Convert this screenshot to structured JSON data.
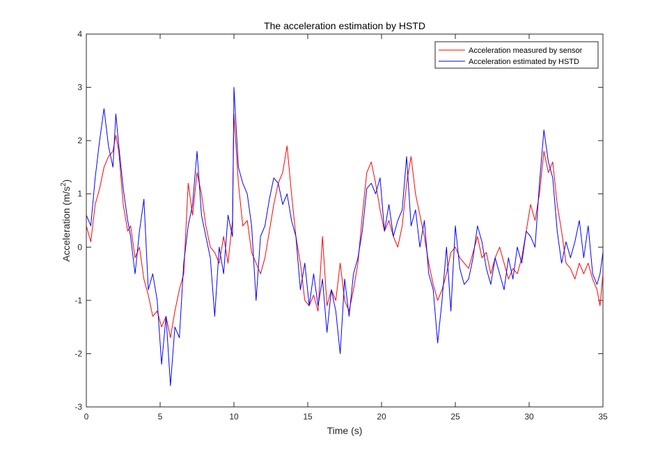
{
  "chart_data": {
    "type": "line",
    "title": "The acceleration estimation by HSTD",
    "xlabel": "Time (s)",
    "ylabel_base": "Acceleration (m/s",
    "ylabel_sup": "2",
    "ylabel_end": ")",
    "xlim": [
      0,
      35
    ],
    "ylim": [
      -3,
      4
    ],
    "xticks": [
      "0",
      "5",
      "10",
      "15",
      "20",
      "25",
      "30",
      "35"
    ],
    "yticks": [
      "-3",
      "-2",
      "-1",
      "0",
      "1",
      "2",
      "3",
      "4"
    ],
    "legend_position": "top-right",
    "series": [
      {
        "name": "Acceleration measured by sensor",
        "color": "#ff0000",
        "points": [
          [
            0,
            0.4
          ],
          [
            0.3,
            0.1
          ],
          [
            0.6,
            0.8
          ],
          [
            0.9,
            1.1
          ],
          [
            1.2,
            1.5
          ],
          [
            1.5,
            1.7
          ],
          [
            1.8,
            1.8
          ],
          [
            2.0,
            2.1
          ],
          [
            2.2,
            1.8
          ],
          [
            2.5,
            0.8
          ],
          [
            2.8,
            0.3
          ],
          [
            3.0,
            0.4
          ],
          [
            3.3,
            -0.2
          ],
          [
            3.6,
            0.0
          ],
          [
            3.9,
            -0.6
          ],
          [
            4.2,
            -0.9
          ],
          [
            4.5,
            -1.3
          ],
          [
            4.8,
            -1.2
          ],
          [
            5.1,
            -1.5
          ],
          [
            5.4,
            -1.3
          ],
          [
            5.7,
            -1.7
          ],
          [
            6.0,
            -1.2
          ],
          [
            6.3,
            -0.8
          ],
          [
            6.6,
            -0.5
          ],
          [
            6.9,
            1.2
          ],
          [
            7.2,
            0.6
          ],
          [
            7.5,
            1.4
          ],
          [
            7.8,
            1.0
          ],
          [
            8.1,
            0.4
          ],
          [
            8.4,
            0.0
          ],
          [
            8.7,
            -0.1
          ],
          [
            9.0,
            -0.3
          ],
          [
            9.3,
            0.2
          ],
          [
            9.6,
            -0.3
          ],
          [
            9.9,
            0.5
          ],
          [
            10.0,
            2.5
          ],
          [
            10.3,
            1.2
          ],
          [
            10.6,
            0.4
          ],
          [
            10.9,
            0.5
          ],
          [
            11.2,
            -0.1
          ],
          [
            11.5,
            -0.3
          ],
          [
            11.8,
            -0.5
          ],
          [
            12.1,
            -0.2
          ],
          [
            12.4,
            0.3
          ],
          [
            12.7,
            0.8
          ],
          [
            13.0,
            1.2
          ],
          [
            13.3,
            1.4
          ],
          [
            13.6,
            1.9
          ],
          [
            13.9,
            1.0
          ],
          [
            14.2,
            0.2
          ],
          [
            14.5,
            -0.3
          ],
          [
            14.8,
            -1.0
          ],
          [
            15.1,
            -1.1
          ],
          [
            15.4,
            -0.9
          ],
          [
            15.7,
            -1.2
          ],
          [
            16.0,
            0.2
          ],
          [
            16.3,
            -1.1
          ],
          [
            16.6,
            -0.8
          ],
          [
            16.9,
            -1.0
          ],
          [
            17.2,
            -0.3
          ],
          [
            17.5,
            -1.0
          ],
          [
            17.8,
            -1.2
          ],
          [
            18.1,
            -0.8
          ],
          [
            18.4,
            -0.3
          ],
          [
            18.7,
            0.6
          ],
          [
            19.0,
            1.4
          ],
          [
            19.3,
            1.6
          ],
          [
            19.6,
            1.2
          ],
          [
            19.9,
            0.7
          ],
          [
            20.2,
            0.3
          ],
          [
            20.5,
            0.5
          ],
          [
            20.8,
            0.2
          ],
          [
            21.1,
            0.0
          ],
          [
            21.4,
            0.4
          ],
          [
            21.7,
            1.2
          ],
          [
            22.0,
            1.7
          ],
          [
            22.3,
            1.0
          ],
          [
            22.6,
            0.6
          ],
          [
            22.9,
            0.2
          ],
          [
            23.2,
            -0.3
          ],
          [
            23.5,
            -0.7
          ],
          [
            23.8,
            -1.0
          ],
          [
            24.1,
            -0.8
          ],
          [
            24.4,
            -0.5
          ],
          [
            24.7,
            -0.1
          ],
          [
            25.0,
            0.0
          ],
          [
            25.3,
            -0.2
          ],
          [
            25.6,
            -0.3
          ],
          [
            25.9,
            -0.4
          ],
          [
            26.2,
            -0.1
          ],
          [
            26.5,
            0.2
          ],
          [
            26.8,
            -0.2
          ],
          [
            27.1,
            -0.1
          ],
          [
            27.4,
            -0.5
          ],
          [
            27.7,
            -0.2
          ],
          [
            28.0,
            0.0
          ],
          [
            28.3,
            -0.3
          ],
          [
            28.6,
            -0.6
          ],
          [
            28.9,
            -0.4
          ],
          [
            29.2,
            -0.5
          ],
          [
            29.5,
            -0.2
          ],
          [
            29.8,
            0.3
          ],
          [
            30.1,
            0.8
          ],
          [
            30.4,
            0.5
          ],
          [
            30.7,
            1.0
          ],
          [
            31.0,
            1.8
          ],
          [
            31.3,
            1.4
          ],
          [
            31.6,
            1.6
          ],
          [
            31.9,
            0.8
          ],
          [
            32.2,
            0.3
          ],
          [
            32.5,
            -0.3
          ],
          [
            32.8,
            -0.4
          ],
          [
            33.1,
            -0.6
          ],
          [
            33.4,
            -0.3
          ],
          [
            33.7,
            -0.5
          ],
          [
            34.0,
            -0.3
          ],
          [
            34.3,
            -0.6
          ],
          [
            34.6,
            -0.8
          ],
          [
            34.8,
            -1.1
          ],
          [
            35.0,
            -0.5
          ]
        ]
      },
      {
        "name": "Acceleration estimated by HSTD",
        "color": "#0000ff",
        "points": [
          [
            0,
            0.6
          ],
          [
            0.3,
            0.4
          ],
          [
            0.6,
            1.3
          ],
          [
            0.9,
            2.0
          ],
          [
            1.2,
            2.6
          ],
          [
            1.5,
            1.9
          ],
          [
            1.8,
            1.5
          ],
          [
            2.0,
            2.5
          ],
          [
            2.2,
            1.9
          ],
          [
            2.5,
            1.1
          ],
          [
            2.8,
            0.5
          ],
          [
            3.0,
            0.2
          ],
          [
            3.3,
            -0.5
          ],
          [
            3.6,
            0.3
          ],
          [
            3.9,
            0.9
          ],
          [
            4.2,
            -0.8
          ],
          [
            4.5,
            -0.5
          ],
          [
            4.8,
            -1.0
          ],
          [
            5.1,
            -2.2
          ],
          [
            5.4,
            -1.3
          ],
          [
            5.7,
            -2.6
          ],
          [
            6.0,
            -1.5
          ],
          [
            6.3,
            -1.7
          ],
          [
            6.6,
            -0.3
          ],
          [
            6.9,
            0.4
          ],
          [
            7.2,
            0.8
          ],
          [
            7.5,
            1.8
          ],
          [
            7.8,
            0.6
          ],
          [
            8.1,
            0.2
          ],
          [
            8.4,
            -0.2
          ],
          [
            8.7,
            -1.3
          ],
          [
            9.0,
            0.0
          ],
          [
            9.3,
            -0.5
          ],
          [
            9.6,
            0.6
          ],
          [
            9.9,
            0.2
          ],
          [
            10.0,
            3.0
          ],
          [
            10.3,
            1.5
          ],
          [
            10.6,
            1.2
          ],
          [
            10.9,
            1.0
          ],
          [
            11.2,
            0.4
          ],
          [
            11.5,
            -1.0
          ],
          [
            11.8,
            0.2
          ],
          [
            12.1,
            0.4
          ],
          [
            12.4,
            0.9
          ],
          [
            12.7,
            1.3
          ],
          [
            13.0,
            1.2
          ],
          [
            13.3,
            0.8
          ],
          [
            13.6,
            1.0
          ],
          [
            13.9,
            0.5
          ],
          [
            14.2,
            0.2
          ],
          [
            14.5,
            -0.8
          ],
          [
            14.8,
            -0.3
          ],
          [
            15.1,
            -1.1
          ],
          [
            15.4,
            -0.5
          ],
          [
            15.7,
            -1.1
          ],
          [
            16.0,
            -0.6
          ],
          [
            16.3,
            -1.6
          ],
          [
            16.6,
            -0.8
          ],
          [
            16.9,
            -1.2
          ],
          [
            17.2,
            -2.0
          ],
          [
            17.5,
            -0.6
          ],
          [
            17.8,
            -1.3
          ],
          [
            18.1,
            -0.5
          ],
          [
            18.4,
            -0.2
          ],
          [
            18.7,
            0.3
          ],
          [
            19.0,
            1.1
          ],
          [
            19.3,
            1.2
          ],
          [
            19.6,
            1.0
          ],
          [
            19.9,
            1.3
          ],
          [
            20.2,
            0.3
          ],
          [
            20.5,
            0.8
          ],
          [
            20.8,
            0.2
          ],
          [
            21.1,
            0.5
          ],
          [
            21.4,
            0.7
          ],
          [
            21.7,
            1.7
          ],
          [
            22.0,
            0.4
          ],
          [
            22.3,
            0.7
          ],
          [
            22.6,
            0.0
          ],
          [
            22.9,
            0.5
          ],
          [
            23.2,
            -0.5
          ],
          [
            23.5,
            -0.8
          ],
          [
            23.8,
            -1.8
          ],
          [
            24.1,
            -1.0
          ],
          [
            24.4,
            0.0
          ],
          [
            24.7,
            -1.2
          ],
          [
            25.0,
            0.4
          ],
          [
            25.3,
            -0.4
          ],
          [
            25.6,
            -0.7
          ],
          [
            25.9,
            -0.6
          ],
          [
            26.2,
            -0.2
          ],
          [
            26.5,
            0.4
          ],
          [
            26.8,
            0.1
          ],
          [
            27.1,
            -0.4
          ],
          [
            27.4,
            -0.7
          ],
          [
            27.7,
            -0.2
          ],
          [
            28.0,
            -0.5
          ],
          [
            28.3,
            -0.8
          ],
          [
            28.6,
            -0.2
          ],
          [
            28.9,
            -0.6
          ],
          [
            29.2,
            0.0
          ],
          [
            29.5,
            -0.3
          ],
          [
            29.8,
            0.3
          ],
          [
            30.1,
            0.2
          ],
          [
            30.4,
            0.0
          ],
          [
            30.7,
            1.2
          ],
          [
            31.0,
            2.2
          ],
          [
            31.3,
            1.6
          ],
          [
            31.6,
            1.3
          ],
          [
            31.9,
            0.3
          ],
          [
            32.2,
            -0.3
          ],
          [
            32.5,
            0.1
          ],
          [
            32.8,
            -0.2
          ],
          [
            33.1,
            0.1
          ],
          [
            33.4,
            0.5
          ],
          [
            33.7,
            -0.2
          ],
          [
            34.0,
            0.4
          ],
          [
            34.3,
            -0.5
          ],
          [
            34.6,
            -0.7
          ],
          [
            34.8,
            -0.5
          ],
          [
            35.0,
            -0.1
          ]
        ]
      }
    ]
  }
}
